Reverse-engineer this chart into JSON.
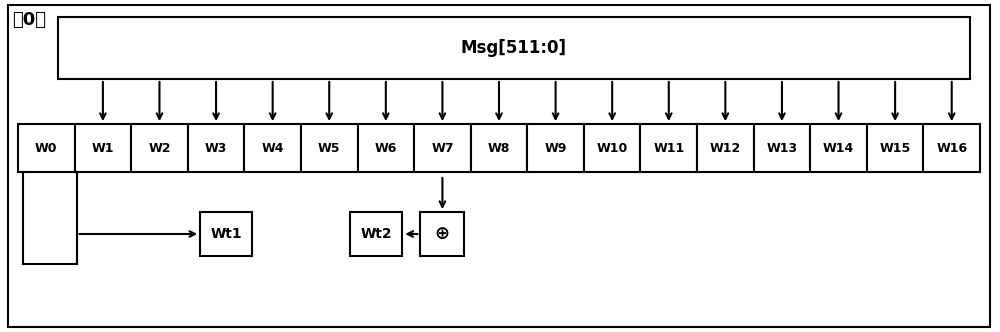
{
  "title_label": "第0轮",
  "msg_label": "Msg[511:0]",
  "w_labels": [
    "W0",
    "W1",
    "W2",
    "W3",
    "W4",
    "W5",
    "W6",
    "W7",
    "W8",
    "W9",
    "W10",
    "W11",
    "W12",
    "W13",
    "W14",
    "W15",
    "W16"
  ],
  "bottom_labels": [
    "Wt1",
    "Wt2"
  ],
  "xor_label": "⊕",
  "bg_color": "#ffffff",
  "box_edge_color": "#000000",
  "line_color": "#000000",
  "font_size_title": 13,
  "font_size_msg": 12,
  "font_size_w": 9,
  "font_size_bottom": 10,
  "font_size_xor": 13,
  "lw": 1.5
}
